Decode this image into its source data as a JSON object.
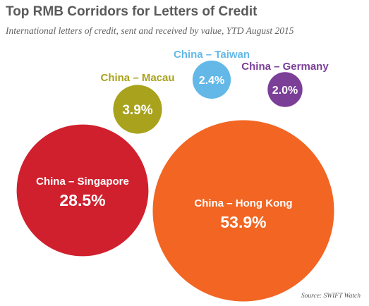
{
  "header": {
    "title": "Top RMB Corridors for Letters of Credit",
    "subtitle": "International letters of credit, sent and received by value, YTD August 2015"
  },
  "footer": {
    "source": "Source: SWIFT Watch"
  },
  "chart_data": {
    "type": "bubble",
    "title": "Top RMB Corridors for Letters of Credit",
    "subtitle": "International letters of credit, sent and received by value, YTD August 2015",
    "unit": "%",
    "series": [
      {
        "name": "China – Hong Kong",
        "value": 53.9,
        "label": "53.9%",
        "color": "#F26522"
      },
      {
        "name": "China – Singapore",
        "value": 28.5,
        "label": "28.5%",
        "color": "#D0202E"
      },
      {
        "name": "China – Macau",
        "value": 3.9,
        "label": "3.9%",
        "color": "#A8A21C"
      },
      {
        "name": "China – Taiwan",
        "value": 2.4,
        "label": "2.4%",
        "color": "#63B8E8"
      },
      {
        "name": "China – Germany",
        "value": 2.0,
        "label": "2.0%",
        "color": "#7B3F98"
      }
    ],
    "legend": "none"
  }
}
